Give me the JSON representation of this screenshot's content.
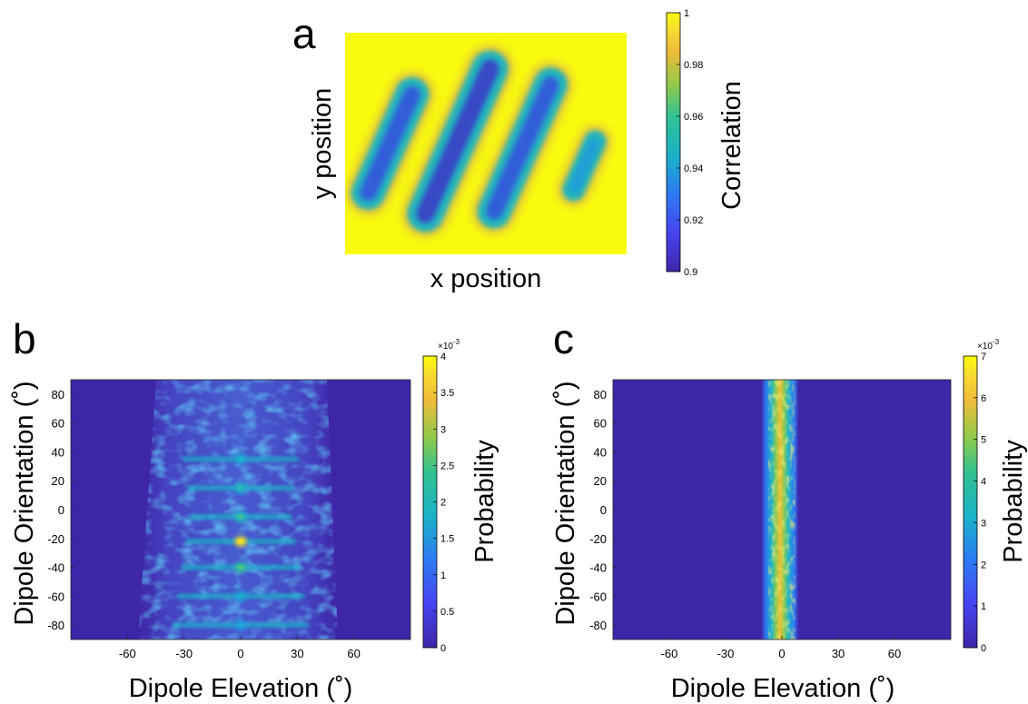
{
  "chart_data": [
    {
      "panel": "a",
      "type": "heatmap",
      "xlabel": "x position",
      "ylabel": "y position",
      "colorbar": {
        "label": "Correlation",
        "range": [
          0.9,
          1
        ],
        "ticks": [
          "1",
          "0.98",
          "0.96",
          "0.94",
          "0.92",
          "0.9"
        ]
      },
      "description": "",
      "colormap": [
        "#3e26a8",
        "#2d7af3",
        "#1ab2c8",
        "#5bc863",
        "#f5c436",
        "#f9fb0e"
      ],
      "background_value": 1,
      "stripes": [
        {
          "center_x": 0.16,
          "center_y": 0.5,
          "length": 0.64,
          "width": 0.12,
          "min_value": 0.905
        },
        {
          "center_x": 0.4,
          "center_y": 0.49,
          "length": 0.88,
          "width": 0.13,
          "min_value": 0.9
        },
        {
          "center_x": 0.63,
          "center_y": 0.52,
          "length": 0.78,
          "width": 0.12,
          "min_value": 0.905
        },
        {
          "center_x": 0.85,
          "center_y": 0.6,
          "length": 0.34,
          "width": 0.08,
          "min_value": 0.925
        }
      ]
    },
    {
      "panel": "b",
      "type": "heatmap",
      "xlabel": "Dipole Elevation (˚)",
      "ylabel": "Dipole Orientation (˚)",
      "x_ticks": [
        "-60",
        "-30",
        "0",
        "30",
        "60"
      ],
      "y_ticks": [
        "80",
        "60",
        "40",
        "20",
        "0",
        "-20",
        "-40",
        "-60",
        "-80"
      ],
      "xlim": [
        -90,
        90
      ],
      "ylim": [
        -90,
        90
      ],
      "colorbar": {
        "label": "Probability",
        "range": [
          0,
          0.004
        ],
        "exponent": "×10",
        "exponent_power": "-3",
        "ticks": [
          "4",
          "3.5",
          "3",
          "2.5",
          "2",
          "1.5",
          "1",
          "0.5",
          "0"
        ]
      },
      "description": "",
      "hot_spots": [
        {
          "elevation": 0,
          "orientation": -22,
          "value": 0.0036
        },
        {
          "elevation": 0,
          "orientation": -40,
          "value": 0.0022
        },
        {
          "elevation": 0,
          "orientation": -5,
          "value": 0.002
        },
        {
          "elevation": 0,
          "orientation": 15,
          "value": 0.0018
        },
        {
          "elevation": 0,
          "orientation": 35,
          "value": 0.0016
        },
        {
          "elevation": 0,
          "orientation": -60,
          "value": 0.0015
        },
        {
          "elevation": 0,
          "orientation": -80,
          "value": 0.0014
        }
      ]
    },
    {
      "panel": "c",
      "type": "heatmap",
      "xlabel": "Dipole Elevation (˚)",
      "ylabel": "Dipole Orientation (˚)",
      "x_ticks": [
        "-60",
        "-30",
        "0",
        "30",
        "60"
      ],
      "y_ticks": [
        "80",
        "60",
        "40",
        "20",
        "0",
        "-20",
        "-40",
        "-60",
        "-80"
      ],
      "xlim": [
        -90,
        90
      ],
      "ylim": [
        -90,
        90
      ],
      "colorbar": {
        "label": "Probability",
        "range": [
          0,
          0.007
        ],
        "exponent": "×10",
        "exponent_power": "-3",
        "ticks": [
          "7",
          "6",
          "5",
          "4",
          "3",
          "2",
          "1",
          "0"
        ]
      },
      "description": "",
      "band": {
        "elevation_center": -1,
        "elevation_halfwidth": 10,
        "peak_value": 0.0065
      }
    }
  ]
}
